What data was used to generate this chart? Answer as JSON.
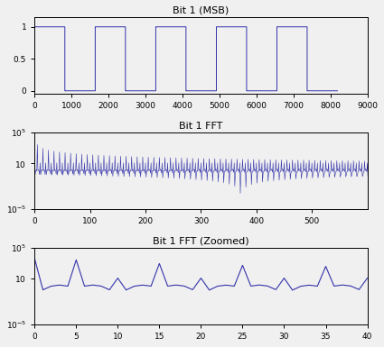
{
  "title1": "Bit 1 (MSB)",
  "title2": "Bit 1 FFT",
  "title3": "Bit 1 FFT (Zoomed)",
  "line_color": "#3333aa",
  "N": 8192,
  "freq": 5,
  "subplot1_xlim": [
    0,
    9000
  ],
  "subplot1_ylim": [
    -0.05,
    1.15
  ],
  "subplot2_xlim": [
    0,
    600
  ],
  "subplot2_ylim_log": [
    1e-05,
    100000.0
  ],
  "subplot3_xlim": [
    0,
    40
  ],
  "subplot3_ylim_log": [
    1e-05,
    100000.0
  ],
  "bg_color": "#f0f0f0",
  "title_fontsize": 8,
  "tick_fontsize": 6.5,
  "fig_width": 4.25,
  "fig_height": 3.85,
  "dpi": 100
}
